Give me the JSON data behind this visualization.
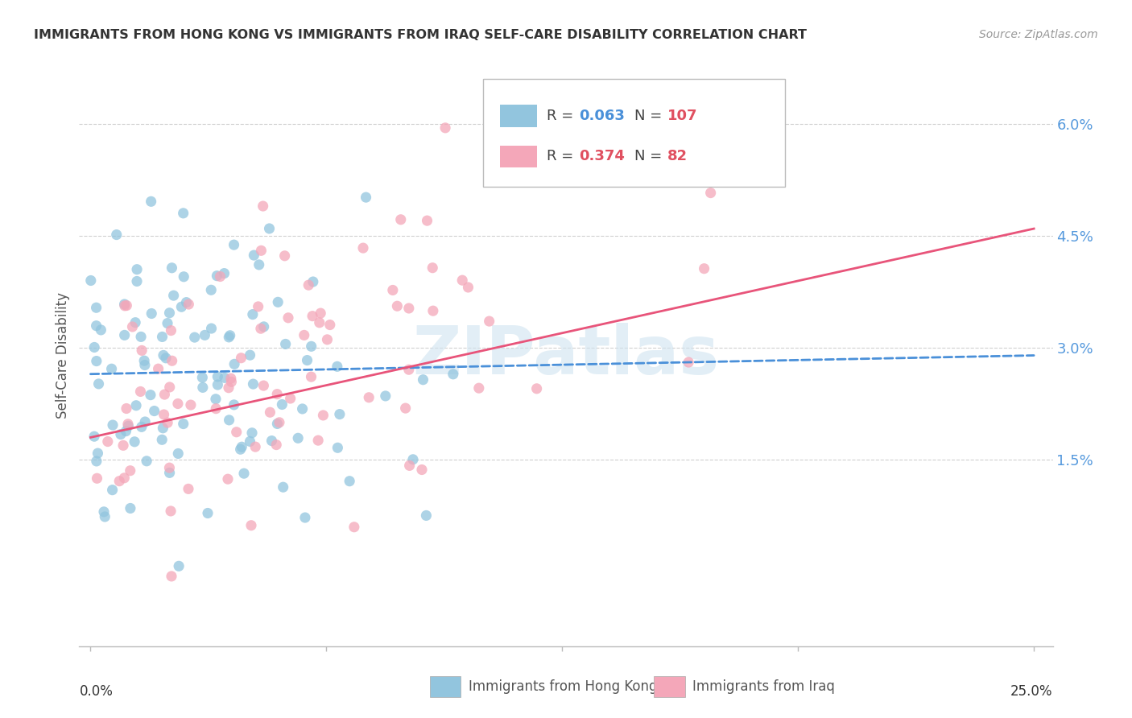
{
  "title": "IMMIGRANTS FROM HONG KONG VS IMMIGRANTS FROM IRAQ SELF-CARE DISABILITY CORRELATION CHART",
  "source": "Source: ZipAtlas.com",
  "ylabel": "Self-Care Disability",
  "ytick_labels": [
    "6.0%",
    "4.5%",
    "3.0%",
    "1.5%"
  ],
  "ytick_values": [
    0.06,
    0.045,
    0.03,
    0.015
  ],
  "xlim": [
    0.0,
    0.25
  ],
  "ylim": [
    -0.01,
    0.068
  ],
  "hk_color": "#92c5de",
  "iraq_color": "#f4a7b9",
  "hk_trend_color": "#4a90d9",
  "iraq_trend_color": "#e8547a",
  "watermark": "ZIPatlas",
  "hk_R": 0.063,
  "hk_N": 107,
  "iraq_R": 0.374,
  "iraq_N": 82,
  "legend_R1": "0.063",
  "legend_N1": "107",
  "legend_R2": "0.374",
  "legend_N2": "82",
  "bottom_label1": "Immigrants from Hong Kong",
  "bottom_label2": "Immigrants from Iraq"
}
